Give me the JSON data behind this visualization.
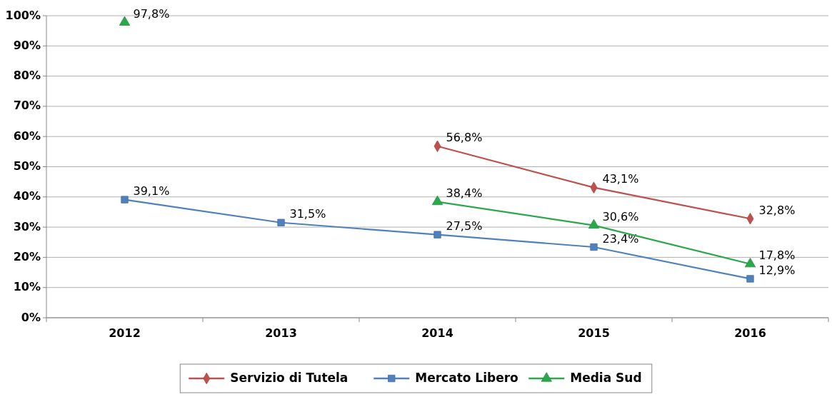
{
  "chart_data": {
    "type": "line",
    "categories": [
      "2012",
      "2013",
      "2014",
      "2015",
      "2016"
    ],
    "series": [
      {
        "name": "Servizio di Tutela",
        "color": "#c0504d",
        "marker": "diamond",
        "values": [
          null,
          null,
          56.8,
          43.1,
          32.8
        ],
        "value_labels": [
          null,
          null,
          "56,8%",
          "43,1%",
          "32,8%"
        ]
      },
      {
        "name": "Mercato Libero",
        "color": "#4f81bd",
        "marker": "square",
        "values": [
          39.1,
          31.5,
          27.5,
          23.4,
          12.9
        ],
        "value_labels": [
          "39,1%",
          "31,5%",
          "27,5%",
          "23,4%",
          "12,9%"
        ]
      },
      {
        "name": "Media Sud",
        "color": "#2aa84a",
        "marker": "triangle",
        "values": [
          97.8,
          null,
          38.4,
          30.6,
          17.8
        ],
        "value_labels": [
          "97,8%",
          null,
          "38,4%",
          "30,6%",
          "17,8%"
        ]
      }
    ],
    "ylim": [
      0,
      100
    ],
    "yticks": [
      {
        "value": 0,
        "label": "0%"
      },
      {
        "value": 10,
        "label": "10%"
      },
      {
        "value": 20,
        "label": "20%"
      },
      {
        "value": 30,
        "label": "30%"
      },
      {
        "value": 40,
        "label": "40%"
      },
      {
        "value": 50,
        "label": "50%"
      },
      {
        "value": 60,
        "label": "60%"
      },
      {
        "value": 70,
        "label": "70%"
      },
      {
        "value": 80,
        "label": "80%"
      },
      {
        "value": 90,
        "label": "90%"
      },
      {
        "value": 100,
        "label": "100%"
      }
    ],
    "grid": "y",
    "legend": "bottom"
  }
}
